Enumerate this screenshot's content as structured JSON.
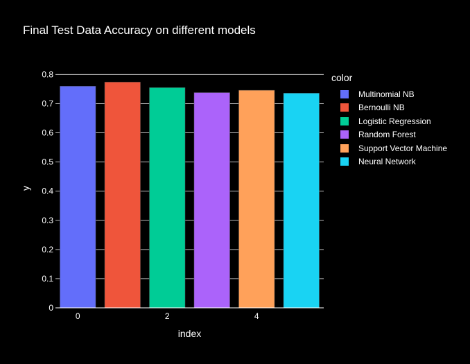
{
  "chart_data": {
    "type": "bar",
    "title": "Final Test Data Accuracy on different models",
    "xlabel": "index",
    "ylabel": "y",
    "x": [
      0,
      1,
      2,
      3,
      4,
      5
    ],
    "x_tick_labels": [
      "0",
      "2",
      "4"
    ],
    "x_ticks": [
      0,
      2,
      4
    ],
    "xlim": [
      -0.5,
      5.5
    ],
    "ylim": [
      0,
      0.82
    ],
    "y_ticks": [
      0,
      0.1,
      0.2,
      0.3,
      0.4,
      0.5,
      0.6,
      0.7,
      0.8
    ],
    "y_tick_labels": [
      "0",
      "0.1",
      "0.2",
      "0.3",
      "0.4",
      "0.5",
      "0.6",
      "0.7",
      "0.8"
    ],
    "grid": true,
    "legend_title": "color",
    "legend_placement": "right",
    "series": [
      {
        "name": "Multinomial NB",
        "x": 0,
        "value": 0.76,
        "color": "#636efa"
      },
      {
        "name": "Bernoulli NB",
        "x": 1,
        "value": 0.774,
        "color": "#ef553b"
      },
      {
        "name": "Logistic Regression",
        "x": 2,
        "value": 0.755,
        "color": "#00cc96"
      },
      {
        "name": "Random Forest",
        "x": 3,
        "value": 0.738,
        "color": "#ab63fa"
      },
      {
        "name": "Support Vector Machine",
        "x": 4,
        "value": 0.746,
        "color": "#ffa15a"
      },
      {
        "name": "Neural Network",
        "x": 5,
        "value": 0.736,
        "color": "#19d3f3"
      }
    ]
  }
}
